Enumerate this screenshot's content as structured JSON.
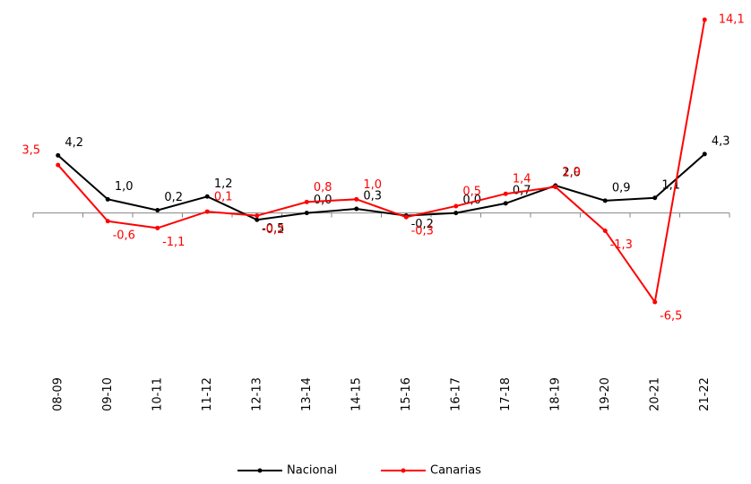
{
  "chart_data": {
    "type": "line",
    "categories": [
      "08-09",
      "09-10",
      "10-11",
      "11-12",
      "12-13",
      "13-14",
      "14-15",
      "15-16",
      "16-17",
      "17-18",
      "18-19",
      "19-20",
      "20-21",
      "21-22"
    ],
    "series": [
      {
        "name": "Nacional",
        "color": "#000000",
        "values": [
          4.2,
          1.0,
          0.2,
          1.2,
          -0.5,
          0.0,
          0.3,
          -0.2,
          0.0,
          0.7,
          2.0,
          0.9,
          1.1,
          4.3
        ],
        "value_labels": [
          "4,2",
          "1,0",
          "0,2",
          "1,2",
          "-0,5",
          "0,0",
          "0,3",
          "-0,2",
          "0,0",
          "0,7",
          "2,0",
          "0,9",
          "1,1",
          "4,3"
        ]
      },
      {
        "name": "Canarias",
        "color": "#ff0000",
        "values": [
          3.5,
          -0.6,
          -1.1,
          0.1,
          -0.2,
          0.8,
          1.0,
          -0.3,
          0.5,
          1.4,
          1.9,
          -1.3,
          -6.5,
          14.1
        ],
        "value_labels": [
          "3,5",
          "-0,6",
          "-1,1",
          "0,1",
          "-0,2",
          "0,8",
          "1,0",
          "-0,3",
          "0,5",
          "1,4",
          "1,9",
          "-1,3",
          "-6,5",
          "14,1"
        ]
      }
    ],
    "legend": "bottom"
  }
}
